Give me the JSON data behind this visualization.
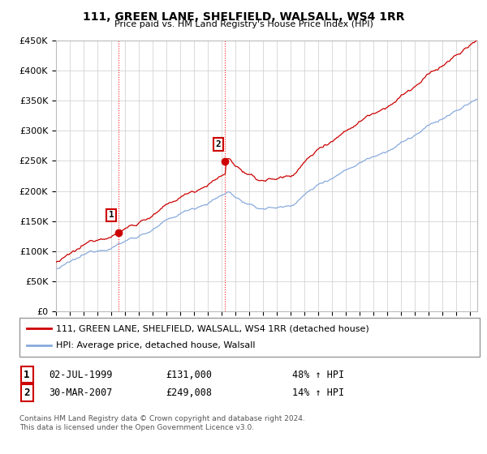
{
  "title": "111, GREEN LANE, SHELFIELD, WALSALL, WS4 1RR",
  "subtitle": "Price paid vs. HM Land Registry's House Price Index (HPI)",
  "legend_line1": "111, GREEN LANE, SHELFIELD, WALSALL, WS4 1RR (detached house)",
  "legend_line2": "HPI: Average price, detached house, Walsall",
  "footer": "Contains HM Land Registry data © Crown copyright and database right 2024.\nThis data is licensed under the Open Government Licence v3.0.",
  "point1_label": "1",
  "point1_date": "02-JUL-1999",
  "point1_price": "£131,000",
  "point1_hpi": "48% ↑ HPI",
  "point2_label": "2",
  "point2_date": "30-MAR-2007",
  "point2_price": "£249,008",
  "point2_hpi": "14% ↑ HPI",
  "house_color": "#cc0000",
  "hpi_color": "#88aadd",
  "point_color": "#cc0000",
  "ylim": [
    0,
    450000
  ],
  "yticks": [
    0,
    50000,
    100000,
    150000,
    200000,
    250000,
    300000,
    350000,
    400000,
    450000
  ],
  "background_color": "#ffffff",
  "grid_color": "#cccccc",
  "sale_times": [
    1999.5,
    2007.25
  ],
  "sale_prices": [
    131000,
    249008
  ]
}
